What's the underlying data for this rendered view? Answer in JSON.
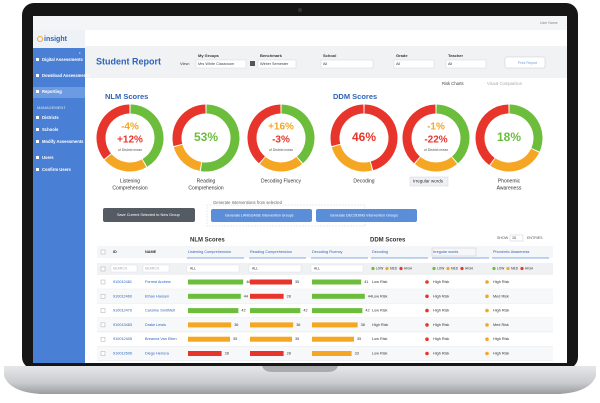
{
  "app": {
    "logo": "insight",
    "user": "User Name"
  },
  "sidebar": {
    "items": [
      "Digital Assessments",
      "Download Assessments",
      "Reporting"
    ],
    "section": "MANAGEMENT",
    "management_items": [
      "Districts",
      "Schools",
      "Modify Assessments",
      "Users",
      "Confirm Users"
    ]
  },
  "header": {
    "title": "Student Report",
    "view_label": "View:",
    "filters": [
      {
        "label": "My Groups",
        "value": "Mrs White Classroom"
      },
      {
        "label": "Benchmark",
        "value": "Winter Semester"
      },
      {
        "label": "School",
        "value": "All"
      },
      {
        "label": "Grade",
        "value": "All"
      },
      {
        "label": "Teacher",
        "value": "All"
      }
    ],
    "print": "Print Report"
  },
  "toggles": [
    "Risk Charts",
    "Visual Comparison"
  ],
  "nlm": {
    "title": "NLM Scores",
    "donuts": [
      {
        "lines": [
          "-4%",
          "+12%"
        ],
        "note": "of District mean",
        "label": [
          "Listening",
          "Comprehension"
        ]
      },
      {
        "lines": [
          "53%"
        ],
        "label": [
          "Reading",
          "Comprehension"
        ]
      },
      {
        "lines": [
          "+16%",
          "-3%"
        ],
        "note": "of District mean",
        "label": [
          "Decoding Fluency"
        ]
      }
    ]
  },
  "ddm": {
    "title": "DDM Scores",
    "donuts": [
      {
        "lines": [
          "46%"
        ],
        "label": [
          "Decoding"
        ]
      },
      {
        "lines": [
          "-1%",
          "-22%"
        ],
        "note": "of District mean",
        "select": "Irregular words"
      },
      {
        "lines": [
          "18%"
        ],
        "label": [
          "Phonemic",
          "Awareness"
        ]
      }
    ]
  },
  "actions": {
    "save": "Save Current Selected to New Group",
    "generate_title": "Generate Interventions from selected",
    "language": "Generate LANGUAGE Intervention Groups",
    "decoding": "Generate DECODING Intervention Groups"
  },
  "table": {
    "nlm_title": "NLM Scores",
    "ddm_title": "DDM Scores",
    "show": "SHOW",
    "entries_count": "10",
    "entries": "ENTRIES",
    "columns": [
      "ID",
      "NAME",
      "Listening Comprehension",
      "Reading Comprehension",
      "Decoding Fluency",
      "Decoding",
      "Irregular words",
      "Phonemic Awareness"
    ],
    "search": "SEARCH",
    "all": "ALL",
    "levels": [
      "LOW",
      "MED",
      "HIGH"
    ],
    "rows": [
      [
        "910012481",
        "Forrest Andrew",
        46,
        35,
        41,
        "Low Risk",
        "High Risk",
        "High Risk"
      ],
      [
        "910012460",
        "Ethan Hansen",
        44,
        28,
        44,
        "Low Risk",
        "High Risk",
        "Med Risk"
      ],
      [
        "910012479",
        "Caroline Smithfelt",
        42,
        42,
        42,
        "Low Risk",
        "High Risk",
        "High Risk"
      ],
      [
        "910013483",
        "Drake Lewis",
        36,
        36,
        38,
        "High Risk",
        "High Risk",
        "Med Risk"
      ],
      [
        "910012405",
        "Breanna Van Elten",
        35,
        35,
        35,
        "Low Risk",
        "High Risk",
        "High Risk"
      ],
      [
        "910012606",
        "Diego Herrera",
        28,
        28,
        33,
        "Low Risk",
        "High Risk",
        "High Risk"
      ],
      [
        "910012477",
        "Quinn Gill",
        25,
        22,
        24,
        "Low Risk",
        "High Risk",
        "High Risk"
      ]
    ],
    "bar_colors": [
      [
        "#6cbd3c",
        "#e8352b",
        "#6cbd3c"
      ],
      [
        "#6cbd3c",
        "#e8352b",
        "#6cbd3c"
      ],
      [
        "#6cbd3c",
        "#6cbd3c",
        "#6cbd3c"
      ],
      [
        "#f5a623",
        "#f5a623",
        "#f5a623"
      ],
      [
        "#f5a623",
        "#f5a623",
        "#f5a623"
      ],
      [
        "#e8352b",
        "#e8352b",
        "#f5a623"
      ],
      [
        "#e8352b",
        "#e8352b",
        "#e8352b"
      ]
    ],
    "dot_colors": [
      [
        "#e8352b",
        "#f5a623"
      ],
      [
        "#e8352b",
        "#f5a623"
      ],
      [
        "#e8352b",
        "#f5a623"
      ],
      [
        "#e8352b",
        "#f5a623"
      ],
      [
        "#e8352b",
        "#f5a623"
      ],
      [
        "#e8352b",
        "#f5a623"
      ],
      [
        "#e8352b",
        "#f5a623"
      ]
    ]
  }
}
